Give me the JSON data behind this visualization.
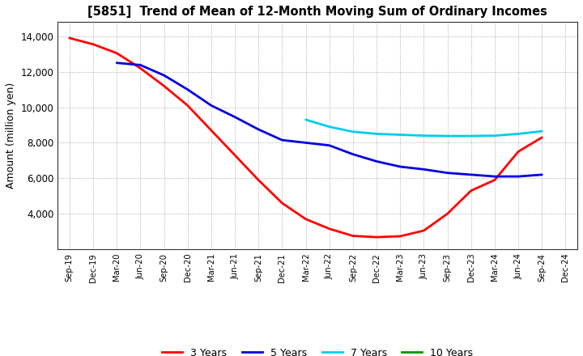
{
  "title": "[5851]  Trend of Mean of 12-Month Moving Sum of Ordinary Incomes",
  "ylabel": "Amount (million yen)",
  "background_color": "#ffffff",
  "x_labels": [
    "Sep-19",
    "Dec-19",
    "Mar-20",
    "Jun-20",
    "Sep-20",
    "Dec-20",
    "Mar-21",
    "Jun-21",
    "Sep-21",
    "Dec-21",
    "Mar-22",
    "Jun-22",
    "Sep-22",
    "Dec-22",
    "Mar-23",
    "Jun-23",
    "Sep-23",
    "Dec-23",
    "Mar-24",
    "Jun-24",
    "Sep-24",
    "Dec-24"
  ],
  "ylim": [
    2000,
    14800
  ],
  "yticks": [
    4000,
    6000,
    8000,
    10000,
    12000,
    14000
  ],
  "series": {
    "3 Years": {
      "color": "#ff0000",
      "x_indices": [
        0,
        1,
        2,
        3,
        4,
        5,
        6,
        7,
        8,
        9,
        10,
        11,
        12,
        13,
        14,
        15,
        16,
        17,
        18,
        19,
        20
      ],
      "values": [
        13900,
        13550,
        13050,
        12200,
        11200,
        10100,
        8700,
        7300,
        5900,
        4600,
        3700,
        3150,
        2750,
        2680,
        2730,
        3050,
        4000,
        5300,
        5900,
        7500,
        8300
      ]
    },
    "5 Years": {
      "color": "#0000dd",
      "x_indices": [
        2,
        3,
        4,
        5,
        6,
        7,
        8,
        9,
        10,
        11,
        12,
        13,
        14,
        15,
        16,
        17,
        18,
        19,
        20
      ],
      "values": [
        12500,
        12380,
        11800,
        11000,
        10100,
        9450,
        8750,
        8150,
        8000,
        7850,
        7350,
        6950,
        6650,
        6500,
        6300,
        6200,
        6100,
        6100,
        6200
      ]
    },
    "7 Years": {
      "color": "#00ccee",
      "x_indices": [
        10,
        11,
        12,
        13,
        14,
        15,
        16,
        17,
        18,
        19,
        20
      ],
      "values": [
        9300,
        8900,
        8620,
        8500,
        8450,
        8400,
        8380,
        8380,
        8400,
        8500,
        8650
      ]
    },
    "10 Years": {
      "color": "#009900",
      "x_indices": [],
      "values": []
    }
  },
  "legend_order": [
    "3 Years",
    "5 Years",
    "7 Years",
    "10 Years"
  ],
  "legend_colors": [
    "#ff0000",
    "#0000dd",
    "#00ccee",
    "#009900"
  ],
  "legend_labels": [
    "3 Years",
    "5 Years",
    "7 Years",
    "10 Years"
  ]
}
